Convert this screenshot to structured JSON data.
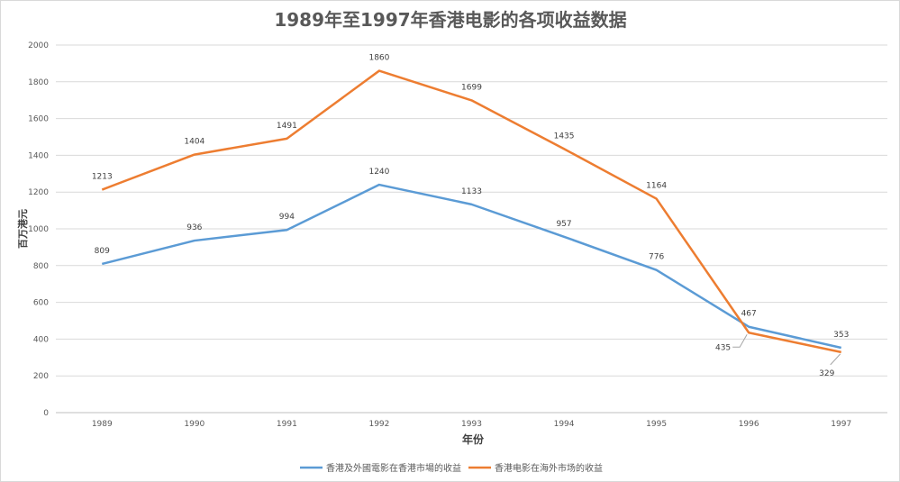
{
  "chart_data": {
    "type": "line",
    "title": "1989年至1997年香港电影的各项收益数据",
    "xlabel": "年份",
    "ylabel": "百万港元",
    "categories": [
      "1989",
      "1990",
      "1991",
      "1992",
      "1993",
      "1994",
      "1995",
      "1996",
      "1997"
    ],
    "ylim": [
      0,
      2000
    ],
    "yticks": [
      0,
      200,
      400,
      600,
      800,
      1000,
      1200,
      1400,
      1600,
      1800,
      2000
    ],
    "grid": true,
    "legend_position": "bottom",
    "series": [
      {
        "name": "香港及外國電影在香港市場的收益",
        "color": "#5b9bd5",
        "values": [
          809,
          936,
          994,
          1240,
          1133,
          957,
          776,
          467,
          353
        ]
      },
      {
        "name": "香港电影在海外市场的收益",
        "color": "#ed7d31",
        "values": [
          1213,
          1404,
          1491,
          1860,
          1699,
          1435,
          1164,
          435,
          329
        ]
      }
    ]
  }
}
